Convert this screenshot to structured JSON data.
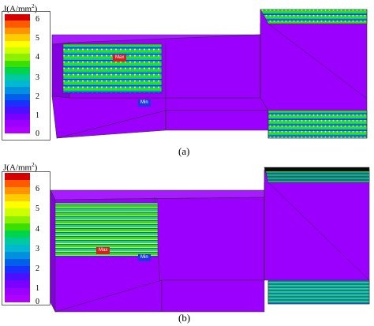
{
  "figure": {
    "panels": [
      {
        "id": "a",
        "caption": "(a)",
        "legend": {
          "title": "J(A/mm",
          "title_exponent": "2",
          "title_close": ")",
          "ticks": [
            "6",
            "5",
            "4",
            "3",
            "2",
            "1",
            "0"
          ]
        },
        "markers": {
          "max": "Max",
          "min": "Min"
        }
      },
      {
        "id": "b",
        "caption": "(b)",
        "legend": {
          "title": "J(A/mm",
          "title_exponent": "2",
          "title_close": ")",
          "ticks": [
            "6",
            "5",
            "4",
            "3",
            "2",
            "1",
            "0"
          ]
        },
        "markers": {
          "max": "Max",
          "min": "Min"
        }
      }
    ],
    "colormap": [
      "#d50000",
      "#ff5a00",
      "#ff9400",
      "#ffcc00",
      "#ffff00",
      "#ccff00",
      "#8cf000",
      "#3ce000",
      "#00d44a",
      "#00c9a0",
      "#00b8d0",
      "#0090e0",
      "#0060e8",
      "#1a30ff",
      "#4a10ff",
      "#7a00ff",
      "#9b00ff",
      "#b000ff"
    ],
    "colors": {
      "body": "#9b00ff",
      "body_dark": "#8400e0",
      "body_light": "#a61bff"
    }
  }
}
